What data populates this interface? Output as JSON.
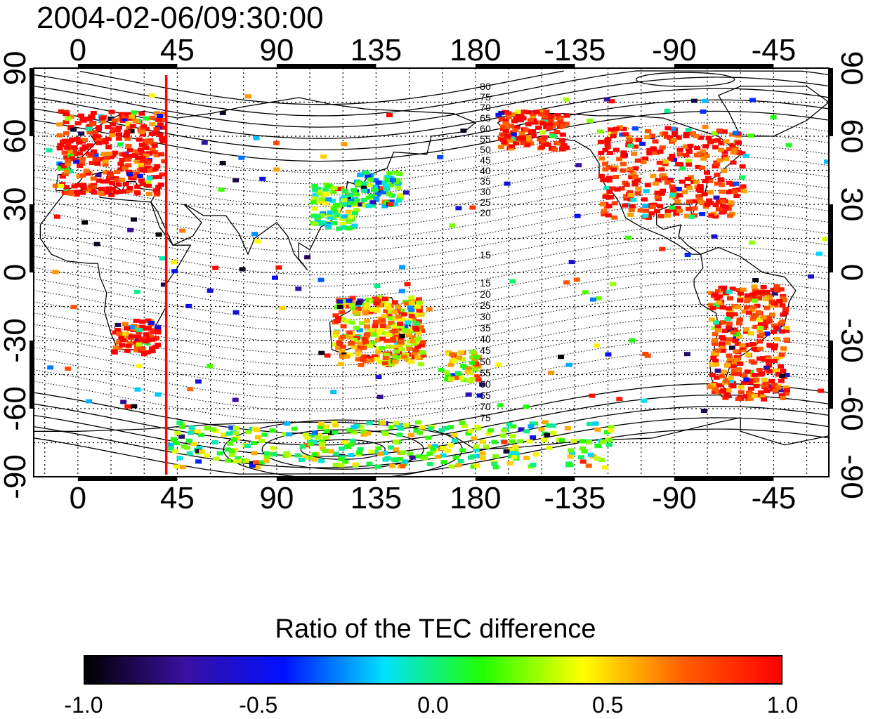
{
  "timestamp": "2004-02-06/09:30:00",
  "lon_ticks_top": [
    "0",
    "45",
    "90",
    "135",
    "180",
    "-135",
    "-90",
    "-45"
  ],
  "lon_ticks_bottom": [
    "0",
    "45",
    "90",
    "135",
    "180",
    "-135",
    "-90",
    "-45"
  ],
  "lat_ticks_left": [
    "90",
    "60",
    "30",
    "0",
    "-30",
    "-60",
    "-90"
  ],
  "lat_ticks_right": [
    "90",
    "60",
    "30",
    "0",
    "-30",
    "-60",
    "-90"
  ],
  "contour_labels_north": [
    "80",
    "75",
    "70",
    "65",
    "60",
    "55",
    "50",
    "45",
    "40",
    "35",
    "30",
    "25",
    "20",
    "15"
  ],
  "contour_labels_south": [
    "15",
    "20",
    "25",
    "30",
    "35",
    "40",
    "45",
    "50",
    "55",
    "60",
    "65",
    "70",
    "75"
  ],
  "marker_line": {
    "longitude": 40,
    "color": "#ff0000"
  },
  "colorbar": {
    "title": "Ratio of the TEC difference",
    "tick_labels": [
      "-1.0",
      "-0.5",
      "0.0",
      "0.5",
      "1.0"
    ],
    "colors": [
      "#000000",
      "#3a10a0",
      "#0010ff",
      "#00e0ff",
      "#20ff00",
      "#ffff00",
      "#ff6000",
      "#ff0000"
    ]
  },
  "chart_data": {
    "type": "heatmap",
    "title": "2004-02-06/09:30:00",
    "xlabel": "",
    "ylabel": "",
    "xlim": [
      -20,
      340
    ],
    "ylim": [
      -90,
      90
    ],
    "grid": true,
    "legend": "colorbar-bottom",
    "value_range": [
      -1.0,
      1.0
    ],
    "clusters": [
      {
        "region": "Europe",
        "lon": [
          -10,
          38
        ],
        "lat": [
          35,
          72
        ],
        "value": 1.0
      },
      {
        "region": "Japan",
        "lon": [
          125,
          145
        ],
        "lat": [
          30,
          45
        ],
        "value": 0.0
      },
      {
        "region": "East Asia",
        "lon": [
          105,
          125
        ],
        "lat": [
          20,
          40
        ],
        "value": 0.1
      },
      {
        "region": "Southern Africa",
        "lon": [
          15,
          35
        ],
        "lat": [
          -35,
          -20
        ],
        "value": 1.0
      },
      {
        "region": "Australia",
        "lon": [
          115,
          155
        ],
        "lat": [
          -40,
          -10
        ],
        "value": 0.6
      },
      {
        "region": "New Zealand",
        "lon": [
          165,
          180
        ],
        "lat": [
          -47,
          -34
        ],
        "value": 0.5
      },
      {
        "region": "North America",
        "lon": [
          235,
          300
        ],
        "lat": [
          25,
          65
        ],
        "value": 1.0
      },
      {
        "region": "Alaska",
        "lon": [
          190,
          220
        ],
        "lat": [
          55,
          72
        ],
        "value": 1.0
      },
      {
        "region": "South America",
        "lon": [
          285,
          320
        ],
        "lat": [
          -55,
          -5
        ],
        "value": 0.9
      },
      {
        "region": "Antarctica",
        "lon": [
          40,
          240
        ],
        "lat": [
          -85,
          -65
        ],
        "value": 0.2
      }
    ]
  }
}
